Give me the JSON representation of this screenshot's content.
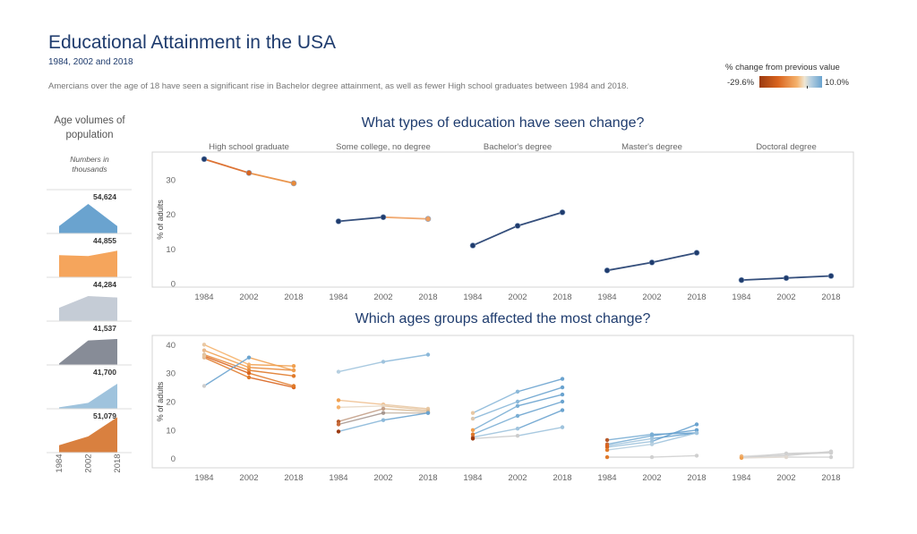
{
  "title": "Educational Attainment in the USA",
  "subtitle": "1984, 2002 and 2018",
  "description": "Amercians over the age of 18 have seen a significant rise in Bachelor degree attainment, as well as fewer High school graduates between 1984 and 2018.",
  "legend": {
    "title": "% change from previous value",
    "min_label": "-29.6%",
    "max_label": "10.0%",
    "colors": [
      "#9b3a0f",
      "#d9641e",
      "#f5b26c",
      "#f0e6d2",
      "#b6cfe0",
      "#6aa3cf"
    ]
  },
  "age_panel": {
    "title": "Age volumes of population",
    "note": "Numbers in thousands"
  },
  "chart_data": [
    {
      "type": "line",
      "title": "What types of education have seen change?",
      "ylabel": "% of adults",
      "ylim": [
        0,
        37
      ],
      "yticks": [
        0,
        10,
        20,
        30
      ],
      "x": [
        "1984",
        "2002",
        "2018"
      ],
      "panels": [
        {
          "name": "High school graduate",
          "values": [
            36,
            32,
            29
          ],
          "colors": [
            "#1f3c6e",
            "#d9641e",
            "#e88a3a"
          ]
        },
        {
          "name": "Some college, no degree",
          "values": [
            18,
            19.2,
            18.7
          ],
          "colors": [
            "#1f3c6e",
            "#1f3c6e",
            "#f0a060"
          ]
        },
        {
          "name": "Bachelor's degree",
          "values": [
            11,
            16.7,
            20.6
          ],
          "colors": [
            "#1f3c6e",
            "#1f3c6e",
            "#1f3c6e"
          ]
        },
        {
          "name": "Master's degree",
          "values": [
            3.8,
            6.1,
            8.9
          ],
          "colors": [
            "#1f3c6e",
            "#1f3c6e",
            "#1f3c6e"
          ]
        },
        {
          "name": "Doctoral degree",
          "values": [
            1.0,
            1.6,
            2.2
          ],
          "colors": [
            "#1f3c6e",
            "#1f3c6e",
            "#1f3c6e"
          ]
        }
      ]
    },
    {
      "type": "line",
      "title": "Which ages groups affected the most change?",
      "ylabel": "% of adults",
      "ylim": [
        -2,
        42
      ],
      "yticks": [
        0,
        10,
        20,
        30,
        40
      ],
      "x": [
        "1984",
        "2002",
        "2018"
      ],
      "panels": [
        {
          "name": "High school graduate",
          "series": [
            {
              "values": [
                40,
                33,
                32.5
              ],
              "colors": [
                "#e9c8a4",
                "#f5b26c",
                "#f0a050"
              ]
            },
            {
              "values": [
                38,
                32,
                31
              ],
              "colors": [
                "#e8b88c",
                "#f0a050",
                "#e88a3a"
              ]
            },
            {
              "values": [
                36.5,
                31,
                29
              ],
              "colors": [
                "#dcbf9c",
                "#e88a3a",
                "#e07a2a"
              ]
            },
            {
              "values": [
                35.5,
                28.5,
                25
              ],
              "colors": [
                "#e0b890",
                "#e07a2a",
                "#d9641e"
              ]
            },
            {
              "values": [
                36,
                30,
                25.5
              ],
              "colors": [
                "#e6c49e",
                "#d9641e",
                "#e07a2a"
              ]
            },
            {
              "values": [
                25.5,
                35.5,
                31
              ],
              "colors": [
                "#cccccc",
                "#6aa3cf",
                "#f0a050"
              ]
            }
          ]
        },
        {
          "name": "Some college, no degree",
          "series": [
            {
              "values": [
                30.5,
                34,
                36.5
              ],
              "colors": [
                "#b6cfe0",
                "#9fc3dd",
                "#8bb8d9"
              ]
            },
            {
              "values": [
                20.5,
                19,
                17.5
              ],
              "colors": [
                "#f0a050",
                "#f0c090",
                "#e8c8a4"
              ]
            },
            {
              "values": [
                18,
                18.5,
                17
              ],
              "colors": [
                "#f5b26c",
                "#e8d8c4",
                "#e6c49e"
              ]
            },
            {
              "values": [
                13,
                17.5,
                16.5
              ],
              "colors": [
                "#b85a2a",
                "#c4a088",
                "#d9b890"
              ]
            },
            {
              "values": [
                12,
                16,
                16
              ],
              "colors": [
                "#c86a3a",
                "#a89890",
                "#c8b8a8"
              ]
            },
            {
              "values": [
                9.5,
                13.5,
                16
              ],
              "colors": [
                "#9b3a0f",
                "#8bb8d9",
                "#6aa3cf"
              ]
            }
          ]
        },
        {
          "name": "Bachelor's degree",
          "series": [
            {
              "values": [
                16,
                23.5,
                28
              ],
              "colors": [
                "#e8c8a4",
                "#8bb8d9",
                "#6aa3cf"
              ]
            },
            {
              "values": [
                14,
                20,
                25
              ],
              "colors": [
                "#dcc8b0",
                "#8bb8d9",
                "#6aa3cf"
              ]
            },
            {
              "values": [
                10,
                18.5,
                22.5
              ],
              "colors": [
                "#f0a050",
                "#7aaed4",
                "#6aa3cf"
              ]
            },
            {
              "values": [
                8.5,
                15,
                20
              ],
              "colors": [
                "#e07a2a",
                "#7aaed4",
                "#6aa3cf"
              ]
            },
            {
              "values": [
                7.5,
                10.5,
                17
              ],
              "colors": [
                "#c86a3a",
                "#9fc3dd",
                "#6aa3cf"
              ]
            },
            {
              "values": [
                7,
                8,
                11
              ],
              "colors": [
                "#9b3a0f",
                "#cccccc",
                "#9fc3dd"
              ]
            }
          ]
        },
        {
          "name": "Master's degree",
          "series": [
            {
              "values": [
                6.5,
                8.5,
                9
              ],
              "colors": [
                "#b85a2a",
                "#7aaed4",
                "#6aa3cf"
              ]
            },
            {
              "values": [
                5,
                8,
                10
              ],
              "colors": [
                "#c86a3a",
                "#7aaed4",
                "#6aa3cf"
              ]
            },
            {
              "values": [
                4.5,
                7,
                9
              ],
              "colors": [
                "#d9641e",
                "#9fc3dd",
                "#6aa3cf"
              ]
            },
            {
              "values": [
                4,
                6,
                12
              ],
              "colors": [
                "#d9641e",
                "#9fc3dd",
                "#6aa3cf"
              ]
            },
            {
              "values": [
                3,
                5,
                9
              ],
              "colors": [
                "#e07a2a",
                "#b6cfe0",
                "#9fc3dd"
              ]
            },
            {
              "values": [
                0.5,
                0.5,
                1
              ],
              "colors": [
                "#e07a2a",
                "#d0d0d0",
                "#d0d0d0"
              ]
            }
          ]
        },
        {
          "name": "Doctoral degree",
          "series": [
            {
              "values": [
                0.5,
                1,
                2.5
              ],
              "colors": [
                "#e6c49e",
                "#cccccc",
                "#d0d0d0"
              ]
            },
            {
              "values": [
                0.8,
                1.5,
                2
              ],
              "colors": [
                "#f0b070",
                "#dcdcdc",
                "#cccccc"
              ]
            },
            {
              "values": [
                0.3,
                1.8,
                2.2
              ],
              "colors": [
                "#e8c8a4",
                "#d0d0d0",
                "#d0d0d0"
              ]
            },
            {
              "values": [
                0.2,
                0.5,
                0.5
              ],
              "colors": [
                "#f0a050",
                "#e0d8d0",
                "#d0d0d0"
              ]
            }
          ]
        }
      ]
    },
    {
      "type": "area",
      "x": [
        "1984",
        "2002",
        "2018"
      ],
      "series": [
        {
          "label": "54,624",
          "values": [
            0.25,
            1.0,
            0.25
          ],
          "color": "#6aa3cf"
        },
        {
          "label": "44,855",
          "values": [
            0.75,
            0.72,
            0.9
          ],
          "color": "#f5a55c"
        },
        {
          "label": "44,284",
          "values": [
            0.45,
            0.85,
            0.8
          ],
          "color": "#c5ccd6"
        },
        {
          "label": "41,537",
          "values": [
            0.05,
            0.83,
            0.88
          ],
          "color": "#878c97"
        },
        {
          "label": "41,700",
          "values": [
            0.05,
            0.2,
            0.85
          ],
          "color": "#9fc3dd"
        },
        {
          "label": "51,079",
          "values": [
            0.25,
            0.55,
            1.2
          ],
          "color": "#d9803f"
        }
      ]
    }
  ]
}
